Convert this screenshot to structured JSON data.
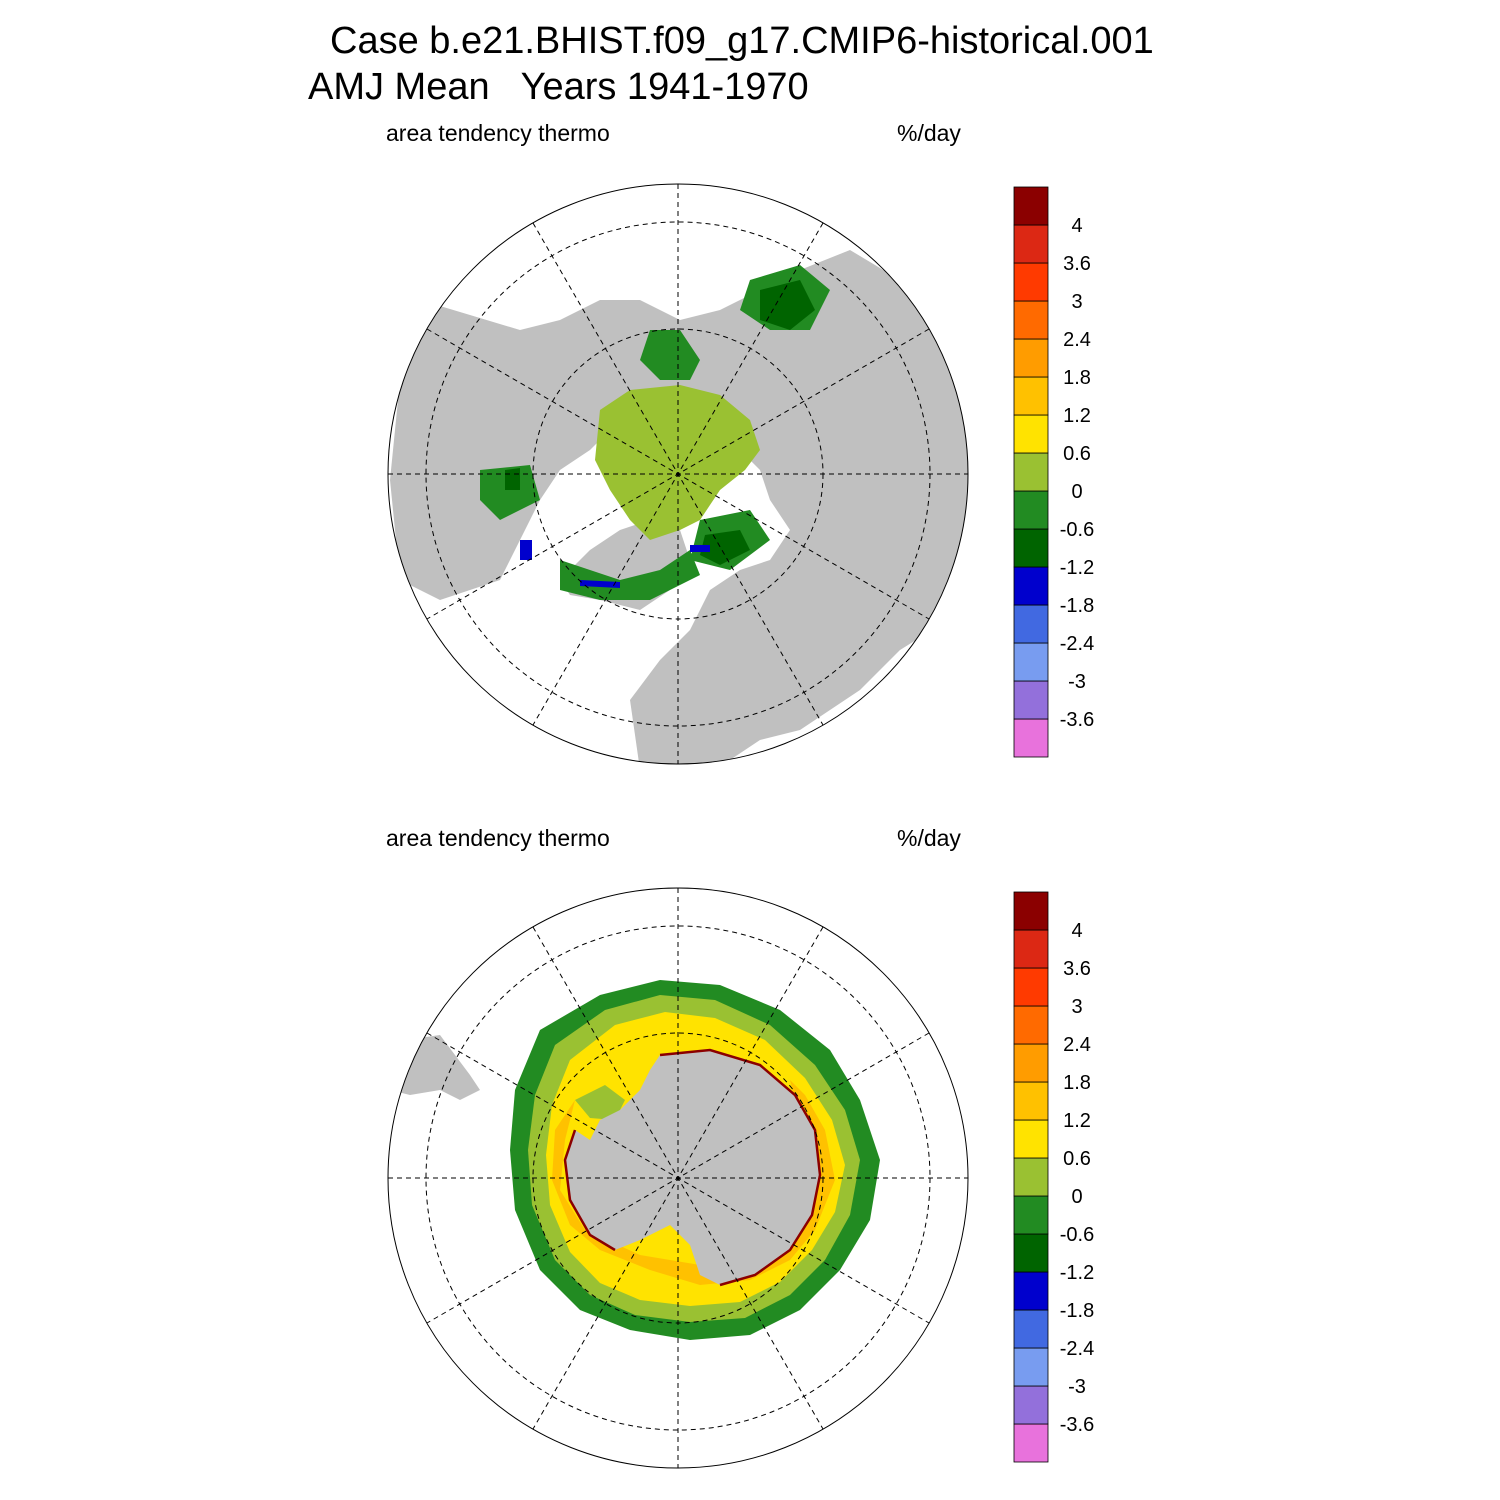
{
  "figure": {
    "title_line1": "Case b.e21.BHIST.f09_g17.CMIP6-historical.001",
    "title_line2": "AMJ Mean   Years 1941-1970"
  },
  "colors": {
    "land": "#c0c0c0",
    "ocean": "#ffffff",
    "grid_line": "#000000"
  },
  "colorbar": {
    "colors": [
      "#e872dc",
      "#9370db",
      "#789cf0",
      "#4169e1",
      "#0000cd",
      "#006400",
      "#228b22",
      "#9ac132",
      "#ffe300",
      "#ffc100",
      "#ff9c00",
      "#ff6a00",
      "#ff3a00",
      "#dc2814",
      "#8b0000"
    ],
    "tick_labels": [
      "-3.6",
      "-3",
      "-2.4",
      "-1.8",
      "-1.2",
      "-0.6",
      "0",
      "0.6",
      "1.2",
      "1.8",
      "2.4",
      "3",
      "3.6",
      "4"
    ]
  },
  "panels": [
    {
      "id": "north",
      "hemisphere": "Northern Hemisphere",
      "left_label": "area tendency thermo",
      "right_label": "%/day"
    },
    {
      "id": "south",
      "hemisphere": "Southern Hemisphere",
      "left_label": "area tendency thermo",
      "right_label": "%/day"
    }
  ]
}
